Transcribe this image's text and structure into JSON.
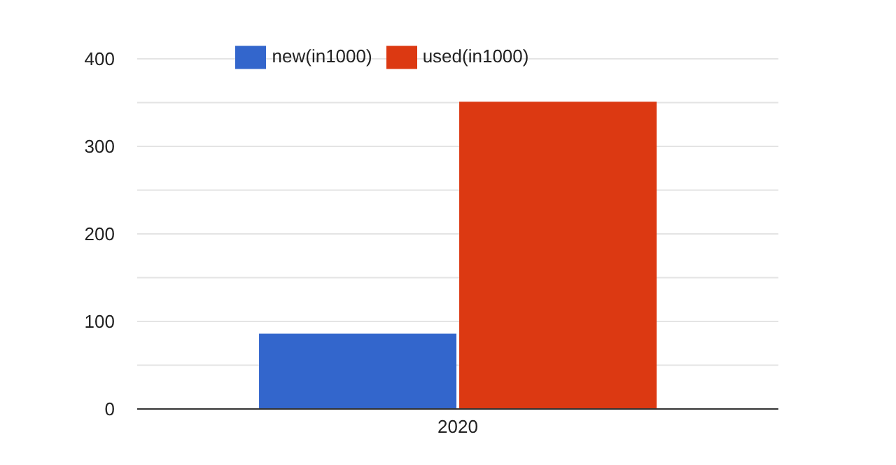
{
  "chart_data": {
    "type": "bar",
    "categories": [
      "2020"
    ],
    "series": [
      {
        "name": "new(in1000)",
        "color": "#3366cc",
        "values": [
          86
        ]
      },
      {
        "name": "used(in1000)",
        "color": "#dc3912",
        "values": [
          351
        ]
      }
    ],
    "ylim": [
      0,
      400
    ],
    "yticks": [
      0,
      {
        "value": 50,
        "label": null
      },
      100,
      {
        "value": 150,
        "label": null
      },
      200,
      {
        "value": 250,
        "label": null
      },
      300,
      {
        "value": 350,
        "label": null
      },
      400
    ],
    "grid": "y",
    "legend": "top"
  }
}
